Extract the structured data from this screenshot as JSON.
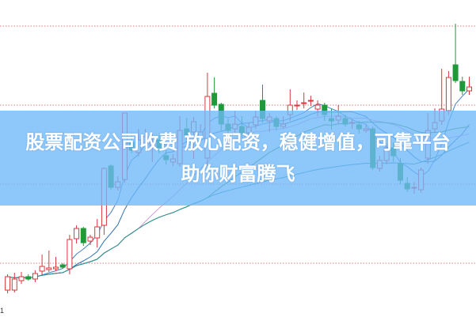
{
  "title": "股票配资公司收费 放心配资，稳健增值，可靠平台助你财富腾飞",
  "corner_label": "1",
  "chart_data": {
    "type": "candlestick",
    "title": "",
    "xlabel": "",
    "ylabel": "",
    "ylim": [
      3.2,
      43.3
    ],
    "gridlines": [
      10,
      20,
      30,
      40
    ],
    "grid": true,
    "colors": {
      "up": "#d9363e",
      "down": "#1f9a3a",
      "grid": "#d77b7b",
      "ma5": "#4a7fc9",
      "ma10": "#2e6fae",
      "ma20": "#d59ad6",
      "ma30": "#3d8a3d",
      "ma60": "#2f8f9a"
    },
    "ohlc": [
      [
        6.6,
        8.6,
        6.2,
        8.3
      ],
      [
        6.6,
        8.8,
        6.3,
        8.0
      ],
      [
        7.8,
        8.9,
        7.4,
        8.3
      ],
      [
        8.3,
        8.6,
        7.8,
        8.0
      ],
      [
        8.0,
        9.1,
        7.6,
        8.7
      ],
      [
        9.0,
        11.1,
        8.5,
        9.6
      ],
      [
        9.2,
        11.6,
        8.9,
        9.4
      ],
      [
        9.3,
        10.8,
        9.0,
        9.5
      ],
      [
        9.8,
        10.0,
        9.3,
        9.5
      ],
      [
        9.3,
        13.6,
        8.6,
        13.0
      ],
      [
        13.1,
        14.8,
        12.5,
        14.4
      ],
      [
        14.4,
        14.6,
        12.2,
        12.6
      ],
      [
        12.8,
        13.6,
        12.3,
        13.3
      ],
      [
        13.2,
        15.6,
        12.0,
        14.6
      ],
      [
        14.8,
        22.1,
        13.6,
        22.0
      ],
      [
        22.3,
        22.5,
        19.3,
        19.6
      ],
      [
        19.6,
        21.0,
        19.2,
        20.3
      ],
      [
        20.6,
        29.0,
        20.2,
        29.0
      ],
      [
        25.3,
        26.5,
        23.9,
        24.3
      ],
      [
        24.0,
        27.0,
        23.5,
        25.6
      ],
      [
        25.0,
        27.0,
        24.4,
        26.0
      ],
      [
        24.8,
        26.4,
        22.8,
        25.3
      ],
      [
        25.6,
        26.2,
        23.9,
        24.6
      ],
      [
        23.6,
        24.3,
        22.5,
        23.1
      ],
      [
        22.8,
        23.8,
        22.3,
        23.2
      ],
      [
        22.6,
        28.6,
        22.2,
        26.8
      ],
      [
        27.0,
        28.4,
        25.6,
        26.1
      ],
      [
        26.6,
        28.5,
        23.2,
        27.9
      ],
      [
        26.0,
        27.6,
        25.5,
        26.6
      ],
      [
        23.3,
        34.1,
        22.3,
        31.1
      ],
      [
        31.5,
        33.5,
        29.6,
        30.0
      ],
      [
        30.1,
        30.3,
        26.8,
        27.6
      ],
      [
        27.6,
        28.3,
        26.3,
        26.8
      ],
      [
        27.0,
        29.3,
        26.4,
        27.6
      ],
      [
        27.3,
        28.6,
        26.0,
        26.5
      ],
      [
        26.5,
        27.8,
        26.1,
        27.2
      ],
      [
        27.5,
        29.3,
        27.0,
        28.5
      ],
      [
        30.6,
        32.6,
        27.8,
        28.3
      ],
      [
        28.0,
        29.0,
        26.6,
        28.5
      ],
      [
        28.3,
        28.6,
        26.8,
        27.3
      ],
      [
        27.3,
        28.6,
        27.0,
        27.6
      ],
      [
        28.8,
        32.0,
        28.0,
        30.0
      ],
      [
        29.9,
        30.6,
        29.4,
        30.0
      ],
      [
        30.3,
        31.6,
        29.6,
        30.3
      ],
      [
        30.5,
        31.2,
        29.9,
        30.6
      ],
      [
        29.5,
        30.6,
        28.6,
        30.0
      ],
      [
        30.0,
        30.3,
        28.0,
        28.8
      ],
      [
        28.3,
        29.5,
        26.9,
        28.0
      ],
      [
        28.1,
        30.0,
        27.6,
        28.6
      ],
      [
        28.3,
        28.8,
        27.3,
        27.6
      ],
      [
        27.8,
        28.3,
        27.0,
        27.8
      ],
      [
        27.5,
        28.0,
        26.4,
        27.0
      ],
      [
        26.8,
        27.5,
        26.5,
        27.0
      ],
      [
        27.0,
        27.3,
        21.8,
        22.1
      ],
      [
        22.0,
        23.6,
        21.6,
        23.0
      ],
      [
        23.0,
        25.0,
        22.5,
        24.6
      ],
      [
        24.6,
        25.3,
        22.8,
        23.6
      ],
      [
        22.6,
        23.3,
        20.0,
        20.5
      ],
      [
        20.1,
        20.9,
        19.0,
        19.4
      ],
      [
        19.5,
        20.3,
        18.8,
        19.6
      ],
      [
        19.3,
        22.1,
        18.9,
        21.8
      ],
      [
        23.3,
        29.0,
        22.6,
        26.8
      ],
      [
        27.0,
        29.6,
        26.6,
        27.8
      ],
      [
        28.0,
        34.6,
        27.5,
        29.5
      ],
      [
        29.3,
        34.3,
        28.8,
        33.5
      ],
      [
        35.1,
        40.3,
        32.8,
        33.1
      ],
      [
        33.0,
        33.6,
        31.3,
        31.8
      ],
      [
        31.8,
        33.6,
        31.3,
        32.3
      ]
    ],
    "moving_averages": [
      5,
      10,
      20,
      30,
      60
    ]
  }
}
